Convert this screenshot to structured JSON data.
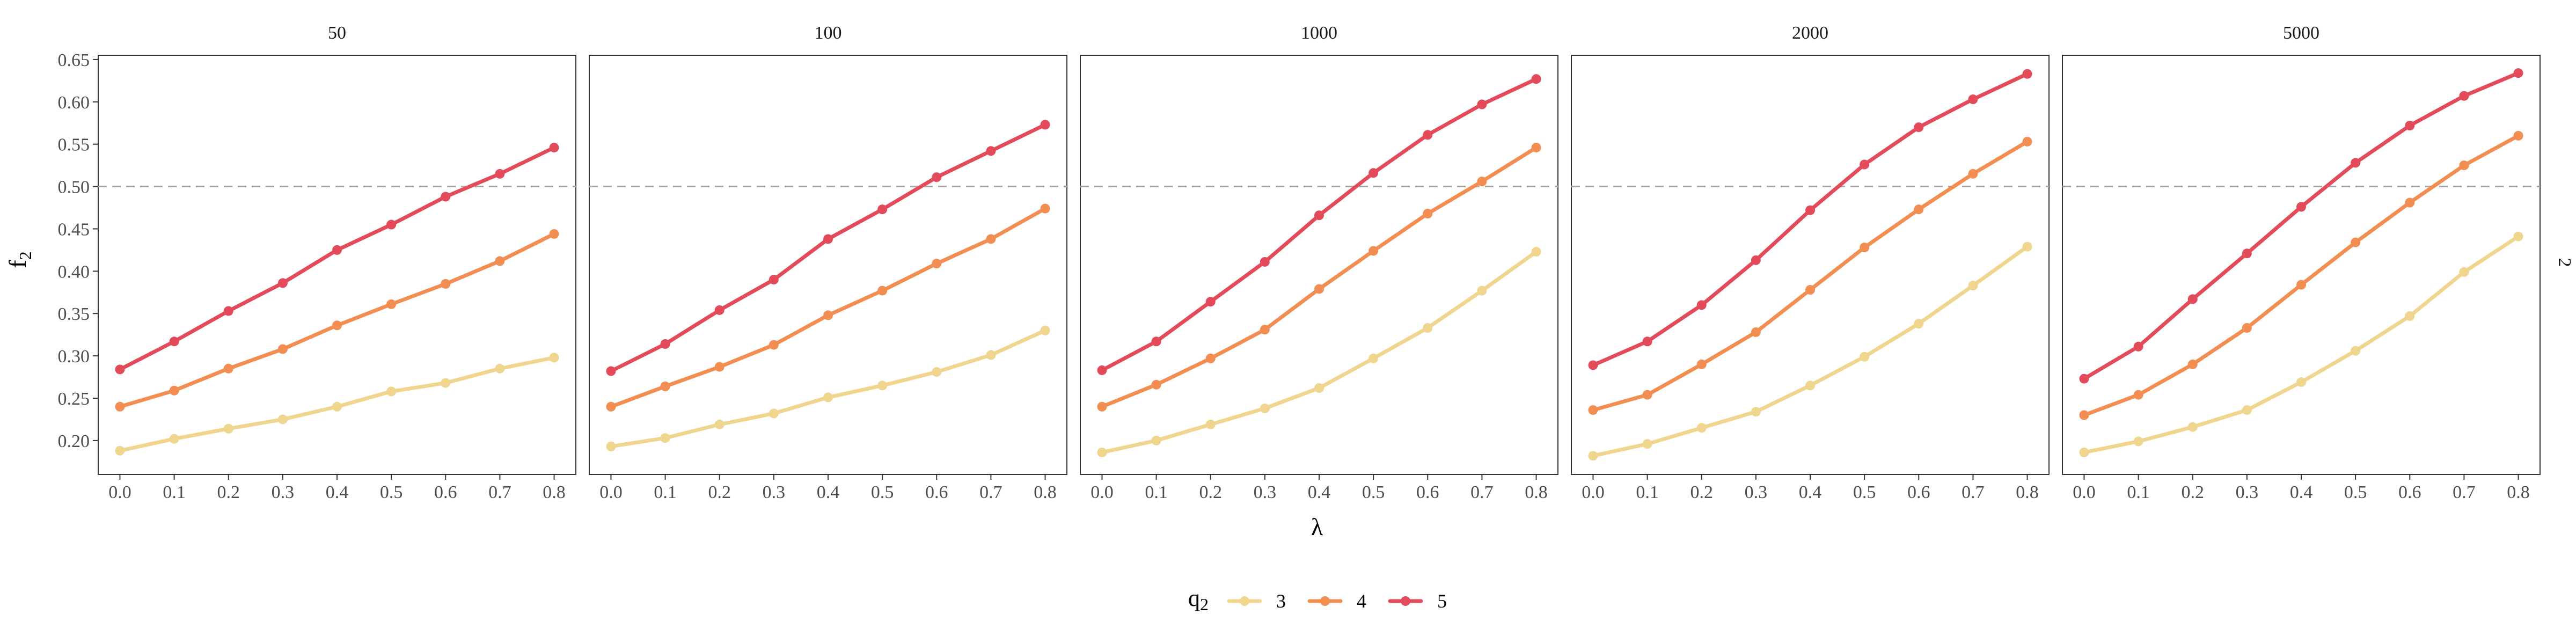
{
  "chart_data": {
    "type": "line",
    "xlabel": "λ",
    "ylabel": "f",
    "ylabel_sub": "2",
    "right_strip_label": "2",
    "x": [
      0.0,
      0.1,
      0.2,
      0.3,
      0.4,
      0.5,
      0.6,
      0.7,
      0.8
    ],
    "x_tick_labels": [
      "0.0",
      "0.1",
      "0.2",
      "0.3",
      "0.4",
      "0.5",
      "0.6",
      "0.7",
      "0.8"
    ],
    "y_ticks": [
      0.2,
      0.25,
      0.3,
      0.35,
      0.4,
      0.45,
      0.5,
      0.55,
      0.6,
      0.65
    ],
    "y_tick_labels": [
      "0.20",
      "0.25",
      "0.30",
      "0.35",
      "0.40",
      "0.45",
      "0.50",
      "0.55",
      "0.60",
      "0.65"
    ],
    "xlim": [
      -0.04,
      0.84
    ],
    "ylim": [
      0.16,
      0.655
    ],
    "reference_line_y": 0.5,
    "grid": false,
    "legend": {
      "position": "bottom",
      "title": "q",
      "title_sub": "2",
      "entries": [
        {
          "label": "3",
          "color": "#f0d58e"
        },
        {
          "label": "4",
          "color": "#f28e52"
        },
        {
          "label": "5",
          "color": "#e34b5a"
        }
      ]
    },
    "panels": [
      {
        "label": "50",
        "series": [
          {
            "name": "3",
            "color": "#f0d58e",
            "values": [
              0.188,
              0.202,
              0.214,
              0.225,
              0.24,
              0.258,
              0.268,
              0.285,
              0.298
            ]
          },
          {
            "name": "4",
            "color": "#f28e52",
            "values": [
              0.24,
              0.259,
              0.285,
              0.308,
              0.336,
              0.361,
              0.385,
              0.412,
              0.444
            ]
          },
          {
            "name": "5",
            "color": "#e34b5a",
            "values": [
              0.284,
              0.317,
              0.353,
              0.386,
              0.425,
              0.455,
              0.488,
              0.515,
              0.546
            ]
          }
        ]
      },
      {
        "label": "100",
        "series": [
          {
            "name": "3",
            "color": "#f0d58e",
            "values": [
              0.193,
              0.203,
              0.219,
              0.232,
              0.251,
              0.265,
              0.281,
              0.301,
              0.33
            ]
          },
          {
            "name": "4",
            "color": "#f28e52",
            "values": [
              0.24,
              0.264,
              0.287,
              0.313,
              0.348,
              0.377,
              0.409,
              0.438,
              0.474
            ]
          },
          {
            "name": "5",
            "color": "#e34b5a",
            "values": [
              0.282,
              0.314,
              0.354,
              0.39,
              0.438,
              0.473,
              0.511,
              0.542,
              0.573
            ]
          }
        ]
      },
      {
        "label": "1000",
        "series": [
          {
            "name": "3",
            "color": "#f0d58e",
            "values": [
              0.186,
              0.2,
              0.219,
              0.238,
              0.262,
              0.297,
              0.333,
              0.377,
              0.423
            ]
          },
          {
            "name": "4",
            "color": "#f28e52",
            "values": [
              0.24,
              0.266,
              0.297,
              0.331,
              0.379,
              0.424,
              0.468,
              0.506,
              0.546
            ]
          },
          {
            "name": "5",
            "color": "#e34b5a",
            "values": [
              0.283,
              0.317,
              0.364,
              0.411,
              0.466,
              0.516,
              0.561,
              0.597,
              0.627
            ]
          }
        ]
      },
      {
        "label": "2000",
        "series": [
          {
            "name": "3",
            "color": "#f0d58e",
            "values": [
              0.182,
              0.196,
              0.215,
              0.234,
              0.265,
              0.299,
              0.338,
              0.383,
              0.429
            ]
          },
          {
            "name": "4",
            "color": "#f28e52",
            "values": [
              0.236,
              0.254,
              0.29,
              0.328,
              0.378,
              0.428,
              0.473,
              0.515,
              0.553
            ]
          },
          {
            "name": "5",
            "color": "#e34b5a",
            "values": [
              0.289,
              0.317,
              0.36,
              0.413,
              0.472,
              0.526,
              0.57,
              0.603,
              0.633
            ]
          }
        ]
      },
      {
        "label": "5000",
        "series": [
          {
            "name": "3",
            "color": "#f0d58e",
            "values": [
              0.186,
              0.199,
              0.216,
              0.236,
              0.269,
              0.306,
              0.347,
              0.399,
              0.441
            ]
          },
          {
            "name": "4",
            "color": "#f28e52",
            "values": [
              0.23,
              0.254,
              0.29,
              0.333,
              0.384,
              0.434,
              0.481,
              0.525,
              0.56
            ]
          },
          {
            "name": "5",
            "color": "#e34b5a",
            "values": [
              0.273,
              0.311,
              0.367,
              0.421,
              0.476,
              0.528,
              0.572,
              0.607,
              0.634
            ]
          }
        ]
      }
    ]
  }
}
